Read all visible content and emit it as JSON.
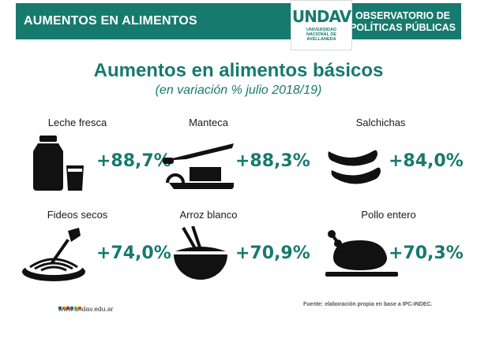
{
  "header": {
    "title": "AUMENTOS EN ALIMENTOS",
    "org_line1": "OBSERVATORIO DE",
    "org_line2": "POLÍTICAS PÚBLICAS",
    "logo_word": "UNDAV",
    "logo_sub1": "UNIVERSIDAD",
    "logo_sub2": "NACIONAL DE",
    "logo_sub3": "AVELLANEDA"
  },
  "main": {
    "title": "Aumentos en alimentos básicos",
    "subtitle": "(en variación % julio 2018/19)"
  },
  "items": [
    {
      "label": "Leche fresca",
      "value": "+88,7%",
      "icon": "milk-bottle-icon"
    },
    {
      "label": "Manteca",
      "value": "+88,3%",
      "icon": "butter-knife-icon"
    },
    {
      "label": "Salchichas",
      "value": "+84,0%",
      "icon": "sausages-icon"
    },
    {
      "label": "Fideos secos",
      "value": "+74,0%",
      "icon": "pasta-fork-icon"
    },
    {
      "label": "Arroz blanco",
      "value": "+70,9%",
      "icon": "rice-bowl-icon"
    },
    {
      "label": "Pollo entero",
      "value": "+70,3%",
      "icon": "roast-chicken-icon"
    }
  ],
  "footer": {
    "website": "www.undav.edu.ar",
    "source": "Fuente: elaboración propia en base a IPC-INDEC."
  },
  "colors": {
    "accent": "#177a6e",
    "icon": "#111111"
  }
}
